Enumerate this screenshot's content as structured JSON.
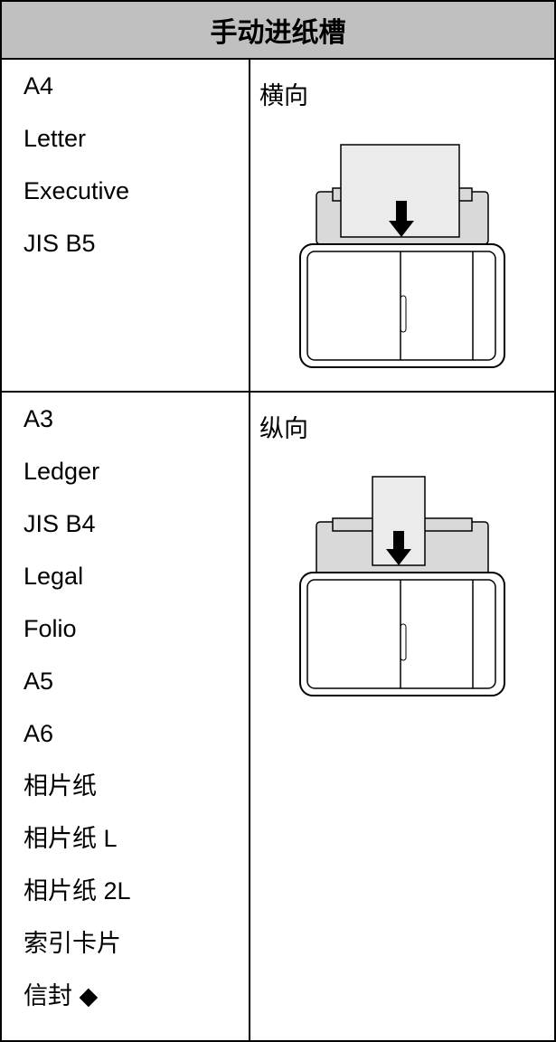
{
  "header": {
    "title": "手动进纸槽"
  },
  "table": {
    "rows": [
      {
        "sizes": [
          "A4",
          "Letter",
          "Executive",
          "JIS B5"
        ],
        "orientation": "横向"
      },
      {
        "sizes": [
          "A3",
          "Ledger",
          "JIS B4",
          "Legal",
          "Folio",
          "A5",
          "A6",
          "相片纸",
          "相片纸 L",
          "相片纸 2L",
          "索引卡片",
          "信封 ◆"
        ],
        "orientation": "纵向"
      }
    ]
  }
}
